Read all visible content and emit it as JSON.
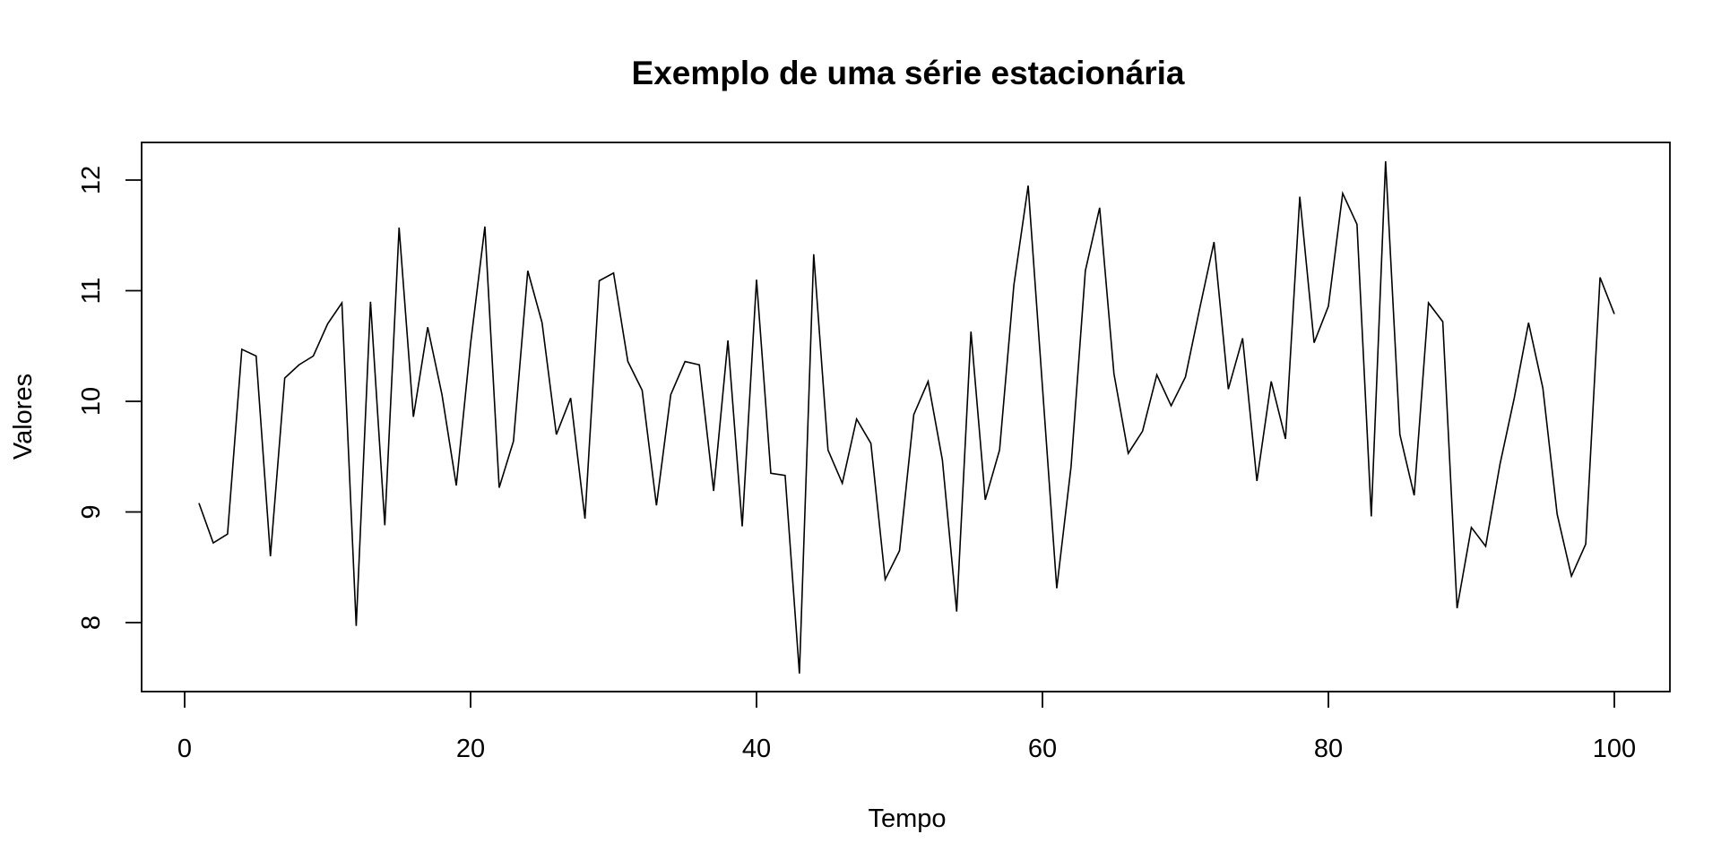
{
  "chart_data": {
    "type": "line",
    "title": "Exemplo de uma série estacionária",
    "xlabel": "Tempo",
    "ylabel": "Valores",
    "xlim": [
      0,
      100
    ],
    "ylim": [
      7.5,
      12.2
    ],
    "xticks": [
      0,
      20,
      40,
      60,
      80,
      100
    ],
    "yticks": [
      8,
      9,
      10,
      11,
      12
    ],
    "grid": false,
    "colors": {
      "line": "#000000",
      "background": "#ffffff"
    },
    "series": [
      {
        "x": [
          1,
          2,
          3,
          4,
          5,
          6,
          7,
          8,
          9,
          10,
          11,
          12,
          13,
          14,
          15,
          16,
          17,
          18,
          19,
          20,
          21,
          22,
          23,
          24,
          25,
          26,
          27,
          28,
          29,
          30,
          31,
          32,
          33,
          34,
          35,
          36,
          37,
          38,
          39,
          40,
          41,
          42,
          43,
          44,
          45,
          46,
          47,
          48,
          49,
          50,
          51,
          52,
          53,
          54,
          55,
          56,
          57,
          58,
          59,
          60,
          61,
          62,
          63,
          64,
          65,
          66,
          67,
          68,
          69,
          70,
          71,
          72,
          73,
          74,
          75,
          76,
          77,
          78,
          79,
          80,
          81,
          82,
          83,
          84,
          85,
          86,
          87,
          88,
          89,
          90,
          91,
          92,
          93,
          94,
          95,
          96,
          97,
          98,
          99,
          100
        ],
        "values": [
          9.08,
          8.72,
          8.8,
          10.47,
          10.41,
          8.6,
          10.21,
          10.33,
          10.41,
          10.7,
          10.89,
          7.97,
          10.9,
          8.88,
          11.57,
          9.86,
          10.67,
          10.06,
          9.24,
          10.52,
          11.58,
          9.22,
          9.64,
          11.18,
          10.71,
          9.7,
          10.03,
          8.94,
          11.09,
          11.16,
          10.36,
          10.1,
          9.06,
          10.06,
          10.36,
          10.33,
          9.19,
          10.55,
          8.87,
          11.1,
          9.35,
          9.33,
          7.54,
          11.33,
          9.56,
          9.26,
          9.84,
          9.62,
          8.39,
          8.65,
          9.88,
          10.18,
          9.47,
          8.1,
          10.63,
          9.11,
          9.56,
          11.05,
          11.95,
          10.13,
          8.31,
          9.41,
          11.18,
          11.75,
          10.25,
          9.53,
          9.73,
          10.24,
          9.96,
          10.22,
          10.84,
          11.44,
          10.11,
          10.57,
          9.28,
          10.18,
          9.66,
          11.85,
          10.53,
          10.86,
          11.88,
          11.6,
          8.96,
          12.17,
          9.7,
          9.15,
          10.89,
          10.72,
          8.13,
          8.86,
          8.69,
          9.43,
          10.03,
          10.71,
          10.12,
          8.98,
          8.42,
          8.71,
          11.12,
          10.79
        ]
      }
    ]
  }
}
